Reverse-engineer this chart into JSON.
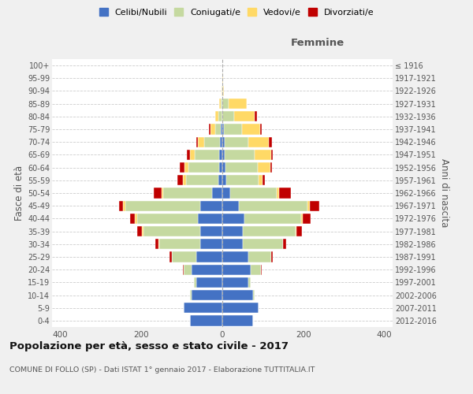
{
  "age_groups": [
    "0-4",
    "5-9",
    "10-14",
    "15-19",
    "20-24",
    "25-29",
    "30-34",
    "35-39",
    "40-44",
    "45-49",
    "50-54",
    "55-59",
    "60-64",
    "65-69",
    "70-74",
    "75-79",
    "80-84",
    "85-89",
    "90-94",
    "95-99",
    "100+"
  ],
  "birth_years": [
    "2012-2016",
    "2007-2011",
    "2002-2006",
    "1997-2001",
    "1992-1996",
    "1987-1991",
    "1982-1986",
    "1977-1981",
    "1972-1976",
    "1967-1971",
    "1962-1966",
    "1957-1961",
    "1952-1956",
    "1947-1951",
    "1942-1946",
    "1937-1941",
    "1932-1936",
    "1927-1931",
    "1922-1926",
    "1917-1921",
    "≤ 1916"
  ],
  "male": {
    "celibe": [
      80,
      95,
      75,
      65,
      75,
      65,
      55,
      55,
      60,
      55,
      25,
      10,
      8,
      8,
      5,
      3,
      0,
      0,
      0,
      0,
      0
    ],
    "coniugato": [
      0,
      0,
      5,
      5,
      20,
      60,
      100,
      140,
      150,
      185,
      120,
      80,
      75,
      60,
      40,
      15,
      10,
      3,
      0,
      0,
      0
    ],
    "vedovo": [
      0,
      0,
      0,
      0,
      0,
      0,
      2,
      3,
      5,
      5,
      5,
      8,
      10,
      12,
      15,
      12,
      8,
      5,
      2,
      0,
      0
    ],
    "divorziato": [
      0,
      0,
      0,
      0,
      3,
      5,
      8,
      12,
      12,
      10,
      20,
      12,
      12,
      8,
      5,
      3,
      0,
      0,
      0,
      0,
      0
    ]
  },
  "female": {
    "nubile": [
      75,
      90,
      75,
      65,
      70,
      65,
      50,
      50,
      55,
      40,
      20,
      10,
      8,
      5,
      5,
      3,
      0,
      0,
      0,
      0,
      0
    ],
    "coniugata": [
      0,
      0,
      5,
      5,
      25,
      55,
      100,
      130,
      140,
      170,
      115,
      80,
      80,
      75,
      60,
      45,
      30,
      15,
      2,
      0,
      0
    ],
    "vedova": [
      0,
      0,
      0,
      0,
      0,
      0,
      0,
      2,
      3,
      5,
      5,
      10,
      30,
      40,
      50,
      45,
      50,
      45,
      2,
      2,
      0
    ],
    "divorziata": [
      0,
      0,
      0,
      0,
      2,
      5,
      8,
      15,
      20,
      25,
      30,
      5,
      5,
      5,
      8,
      5,
      5,
      0,
      0,
      0,
      0
    ]
  },
  "colors": {
    "celibe": "#4472c4",
    "coniugato": "#c5d9a0",
    "vedovo": "#ffd966",
    "divorziato": "#c00000"
  },
  "legend_labels": [
    "Celibi/Nubili",
    "Coniugati/e",
    "Vedovi/e",
    "Divorziati/e"
  ],
  "legend_colors": [
    "#4472c4",
    "#c5d9a0",
    "#ffd966",
    "#c00000"
  ],
  "title": "Popolazione per età, sesso e stato civile - 2017",
  "subtitle": "COMUNE DI FOLLO (SP) - Dati ISTAT 1° gennaio 2017 - Elaborazione TUTTITALIA.IT",
  "xlabel_right": "Femmine",
  "ylabel_left": "Fasce di età",
  "ylabel_right": "Anni di nascita",
  "xlim": 420,
  "bg_color": "#f0f0f0",
  "plot_bg": "#ffffff",
  "grid_color": "#cccccc",
  "center_line_color": "#aaaaaa"
}
